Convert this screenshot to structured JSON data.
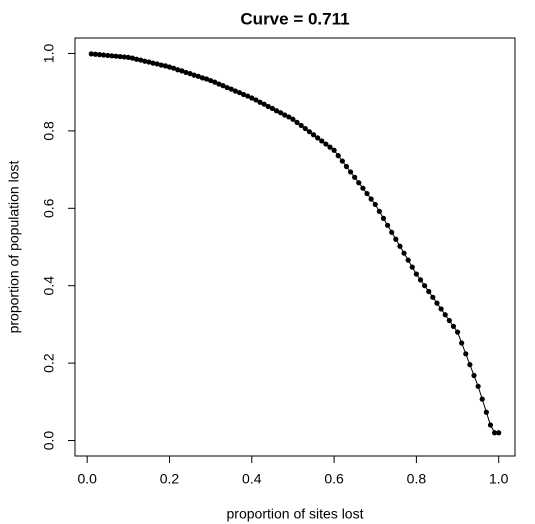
{
  "chart_data": {
    "type": "line",
    "title": "Curve = 0.711",
    "x_label": "proportion of sites lost",
    "y_label": "proportion of population lost",
    "color": "#000000",
    "x": [
      0.01,
      0.02,
      0.03,
      0.04,
      0.05,
      0.06,
      0.07,
      0.08,
      0.09,
      0.1,
      0.11,
      0.12,
      0.13,
      0.14,
      0.15,
      0.16,
      0.17,
      0.18,
      0.19,
      0.2,
      0.21,
      0.22,
      0.23,
      0.24,
      0.25,
      0.26,
      0.27,
      0.28,
      0.29,
      0.3,
      0.31,
      0.32,
      0.33,
      0.34,
      0.35,
      0.36,
      0.37,
      0.38,
      0.39,
      0.4,
      0.41,
      0.42,
      0.43,
      0.44,
      0.45,
      0.46,
      0.47,
      0.48,
      0.49,
      0.5,
      0.51,
      0.52,
      0.53,
      0.54,
      0.55,
      0.56,
      0.57,
      0.58,
      0.59,
      0.6,
      0.61,
      0.62,
      0.63,
      0.64,
      0.65,
      0.66,
      0.67,
      0.68,
      0.69,
      0.7,
      0.71,
      0.72,
      0.73,
      0.74,
      0.75,
      0.76,
      0.77,
      0.78,
      0.79,
      0.8,
      0.81,
      0.82,
      0.83,
      0.84,
      0.85,
      0.86,
      0.87,
      0.88,
      0.89,
      0.9,
      0.91,
      0.92,
      0.93,
      0.94,
      0.95,
      0.96,
      0.97,
      0.98,
      0.99,
      1.0
    ],
    "values": [
      0.999,
      0.998,
      0.997,
      0.996,
      0.995,
      0.994,
      0.993,
      0.992,
      0.991,
      0.99,
      0.988,
      0.985,
      0.983,
      0.98,
      0.978,
      0.975,
      0.973,
      0.97,
      0.968,
      0.965,
      0.962,
      0.958,
      0.955,
      0.951,
      0.948,
      0.944,
      0.941,
      0.937,
      0.934,
      0.93,
      0.926,
      0.921,
      0.917,
      0.912,
      0.908,
      0.903,
      0.899,
      0.894,
      0.89,
      0.885,
      0.88,
      0.874,
      0.869,
      0.863,
      0.858,
      0.852,
      0.847,
      0.841,
      0.836,
      0.83,
      0.822,
      0.814,
      0.806,
      0.798,
      0.79,
      0.782,
      0.774,
      0.766,
      0.758,
      0.75,
      0.736,
      0.722,
      0.708,
      0.694,
      0.68,
      0.666,
      0.652,
      0.638,
      0.624,
      0.61,
      0.592,
      0.574,
      0.556,
      0.538,
      0.52,
      0.502,
      0.484,
      0.466,
      0.448,
      0.43,
      0.415,
      0.4,
      0.385,
      0.37,
      0.355,
      0.34,
      0.325,
      0.31,
      0.295,
      0.28,
      0.252,
      0.224,
      0.196,
      0.168,
      0.14,
      0.107,
      0.073,
      0.04,
      0.02,
      0.02
    ],
    "xlim": [
      -0.0296,
      1.0396
    ],
    "xticks": [
      {
        "value": 0,
        "label": "0.0"
      },
      0.2,
      0.4,
      0.6,
      0.8,
      {
        "value": 1,
        "label": "1.0"
      }
    ],
    "ylim": [
      -0.04,
      1.04
    ],
    "yticks": [
      {
        "value": 0,
        "label": "0.0"
      },
      0.2,
      0.4,
      0.6,
      0.8,
      {
        "value": 1,
        "label": "1.0"
      }
    ]
  }
}
